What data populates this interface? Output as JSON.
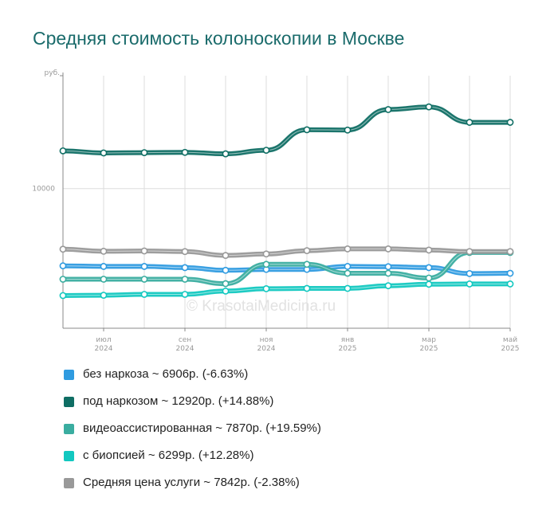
{
  "title": "Средняя стоимость колоноскопии в Москве",
  "watermark": "© KrasotaiMedicina.ru",
  "chart_data": {
    "type": "line",
    "title": "Средняя стоимость колоноскопии в Москве",
    "ylabel": "руб.",
    "xlabel": "",
    "ylim": [
      5300,
      13800
    ],
    "grid": true,
    "legend_position": "bottom",
    "x": [
      "2024-06",
      "2024-07",
      "2024-08",
      "2024-09",
      "2024-10",
      "2024-11",
      "2024-12",
      "2025-01",
      "2025-02",
      "2025-03",
      "2025-04",
      "2025-05"
    ],
    "x_ticks": [
      {
        "month": "июл",
        "year": "2024",
        "index": 1
      },
      {
        "month": "сен",
        "year": "2024",
        "index": 3
      },
      {
        "month": "ноя",
        "year": "2024",
        "index": 5
      },
      {
        "month": "янв",
        "year": "2025",
        "index": 7
      },
      {
        "month": "мар",
        "year": "2025",
        "index": 9
      },
      {
        "month": "май",
        "year": "2025",
        "index": 11
      }
    ],
    "y_ticks": [
      10000
    ],
    "series": [
      {
        "name": "без наркоза",
        "color": "#2f9be0",
        "values": [
          7400,
          7380,
          7380,
          7340,
          7250,
          7280,
          7280,
          7380,
          7370,
          7340,
          7140,
          7150
        ],
        "legend": "без наркоза ~ 6906р. (-6.63%)"
      },
      {
        "name": "под наркозом",
        "color": "#0f6e64",
        "values": [
          11270,
          11200,
          11210,
          11220,
          11170,
          11290,
          11980,
          11970,
          12660,
          12750,
          12230,
          12230
        ],
        "legend": "под наркозом ~ 12920р. (+14.88%)"
      },
      {
        "name": "видеоассистированная",
        "color": "#3aada0",
        "values": [
          6950,
          6950,
          6950,
          6950,
          6800,
          7450,
          7450,
          7150,
          7150,
          6990,
          7850,
          7850
        ],
        "legend": "видеоассистированная ~ 7870р. (+19.59%)"
      },
      {
        "name": "с биопсией",
        "color": "#12c8c0",
        "values": [
          6400,
          6410,
          6440,
          6440,
          6550,
          6630,
          6640,
          6640,
          6730,
          6780,
          6790,
          6790
        ],
        "legend": "с биопсией ~ 6299р. (+12.28%)"
      },
      {
        "name": "Средняя цена услуги",
        "color": "#999999",
        "values": [
          7960,
          7890,
          7900,
          7880,
          7750,
          7800,
          7910,
          7970,
          7970,
          7930,
          7880,
          7880
        ],
        "legend": "Средняя цена услуги ~ 7842р. (-2.38%)"
      }
    ]
  }
}
